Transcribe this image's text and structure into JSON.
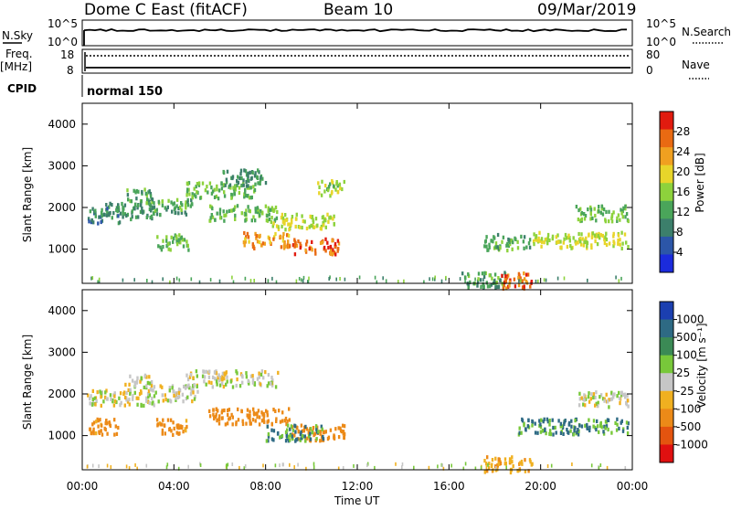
{
  "header": {
    "station": "Dome C East (fitACF)",
    "beam": "Beam 10",
    "date": "09/Mar/2019"
  },
  "top_panels": {
    "nsky_label": "N.Sky",
    "nsky_ticks": [
      "10^5",
      "10^0"
    ],
    "nsearch_label": "N.Search",
    "freq_label_1": "Freq.",
    "freq_label_2": "[MHz]",
    "freq_ticks": [
      "18",
      "8"
    ],
    "nave_ticks": [
      "80",
      "0"
    ],
    "nave_label": "Nave",
    "cpid_label": "CPID",
    "cpid_value": "normal 150"
  },
  "colors": {
    "power_scale": [
      "#1b2bdc",
      "#2c56a8",
      "#3c7f6b",
      "#4aa55a",
      "#8dd23c",
      "#e8d52a",
      "#f0a020",
      "#e96a12",
      "#e11b0f"
    ],
    "velocity_scale": [
      "#1b3fb0",
      "#2e6a84",
      "#3b8a55",
      "#78c83a",
      "#c6c6c6",
      "#f0b020",
      "#ec8a18",
      "#e4540f",
      "#e01010"
    ]
  },
  "chart_data": [
    {
      "type": "heatmap",
      "title": "Power",
      "ylabel": "Slant Range [km]",
      "ylim": [
        180,
        4500
      ],
      "yticks": [
        "4000",
        "3000",
        "2000",
        "1000"
      ],
      "colorbar_label": "Power [dB]",
      "colorbar_ticks": [
        "28",
        "24",
        "20",
        "16",
        "12",
        "8",
        "4"
      ],
      "colorbar_range": [
        0,
        32
      ],
      "echo_regions": [
        {
          "t_start": 1.0,
          "t_end": 3.2,
          "range_km": 1950,
          "value_db": 10
        },
        {
          "t_start": 0.2,
          "t_end": 1.6,
          "range_km": 1850,
          "value_db": 8
        },
        {
          "t_start": 1.8,
          "t_end": 3.0,
          "range_km": 2300,
          "value_db": 12
        },
        {
          "t_start": 3.0,
          "t_end": 4.8,
          "range_km": 2050,
          "value_db": 12
        },
        {
          "t_start": 3.2,
          "t_end": 4.6,
          "range_km": 1200,
          "value_db": 14
        },
        {
          "t_start": 4.5,
          "t_end": 7.5,
          "range_km": 2450,
          "value_db": 14
        },
        {
          "t_start": 5.5,
          "t_end": 8.5,
          "range_km": 1900,
          "value_db": 14
        },
        {
          "t_start": 6.0,
          "t_end": 8.0,
          "range_km": 2750,
          "value_db": 10
        },
        {
          "t_start": 7.0,
          "t_end": 9.0,
          "range_km": 1250,
          "value_db": 24
        },
        {
          "t_start": 8.2,
          "t_end": 11.0,
          "range_km": 1700,
          "value_db": 18
        },
        {
          "t_start": 9.0,
          "t_end": 11.2,
          "range_km": 1100,
          "value_db": 28
        },
        {
          "t_start": 10.2,
          "t_end": 11.4,
          "range_km": 2500,
          "value_db": 16
        },
        {
          "t_start": 16.5,
          "t_end": 18.5,
          "range_km": 300,
          "value_db": 12
        },
        {
          "t_start": 18.2,
          "t_end": 19.6,
          "range_km": 280,
          "value_db": 28
        },
        {
          "t_start": 17.5,
          "t_end": 19.5,
          "range_km": 1200,
          "value_db": 12
        },
        {
          "t_start": 19.5,
          "t_end": 23.8,
          "range_km": 1250,
          "value_db": 18
        },
        {
          "t_start": 21.5,
          "t_end": 23.8,
          "range_km": 1900,
          "value_db": 14
        }
      ]
    },
    {
      "type": "heatmap",
      "title": "Velocity",
      "ylabel": "Slant Range [km]",
      "ylim": [
        180,
        4500
      ],
      "yticks": [
        "4000",
        "3000",
        "2000",
        "1000"
      ],
      "colorbar_label": "Velocity [m s⁻¹]",
      "colorbar_ticks": [
        "1000",
        "500",
        "100",
        "25",
        "-25",
        "-100",
        "-500",
        "-1000"
      ],
      "echo_regions": [
        {
          "t_start": 0.2,
          "t_end": 3.2,
          "range_km": 1950,
          "velocity": 0
        },
        {
          "t_start": 1.8,
          "t_end": 3.0,
          "range_km": 2300,
          "velocity": 0
        },
        {
          "t_start": 3.0,
          "t_end": 5.0,
          "range_km": 2050,
          "velocity": 0
        },
        {
          "t_start": 0.2,
          "t_end": 1.6,
          "range_km": 1250,
          "velocity": -150
        },
        {
          "t_start": 3.2,
          "t_end": 4.6,
          "range_km": 1250,
          "velocity": -150
        },
        {
          "t_start": 4.5,
          "t_end": 8.5,
          "range_km": 2400,
          "velocity": 0
        },
        {
          "t_start": 5.5,
          "t_end": 9.0,
          "range_km": 1500,
          "velocity": -300
        },
        {
          "t_start": 9.0,
          "t_end": 11.4,
          "range_km": 1100,
          "velocity": -300
        },
        {
          "t_start": 8.0,
          "t_end": 10.5,
          "range_km": 1100,
          "velocity": 100
        },
        {
          "t_start": 17.5,
          "t_end": 19.6,
          "range_km": 350,
          "velocity": -80
        },
        {
          "t_start": 19.0,
          "t_end": 23.8,
          "range_km": 1250,
          "velocity": 100
        },
        {
          "t_start": 21.5,
          "t_end": 23.8,
          "range_km": 1900,
          "velocity": 0
        }
      ]
    }
  ],
  "x_axis": {
    "ticks": [
      "00:00",
      "04:00",
      "08:00",
      "12:00",
      "16:00",
      "20:00",
      "00:00"
    ],
    "label": "Time UT",
    "range_hours": [
      0,
      24
    ]
  }
}
